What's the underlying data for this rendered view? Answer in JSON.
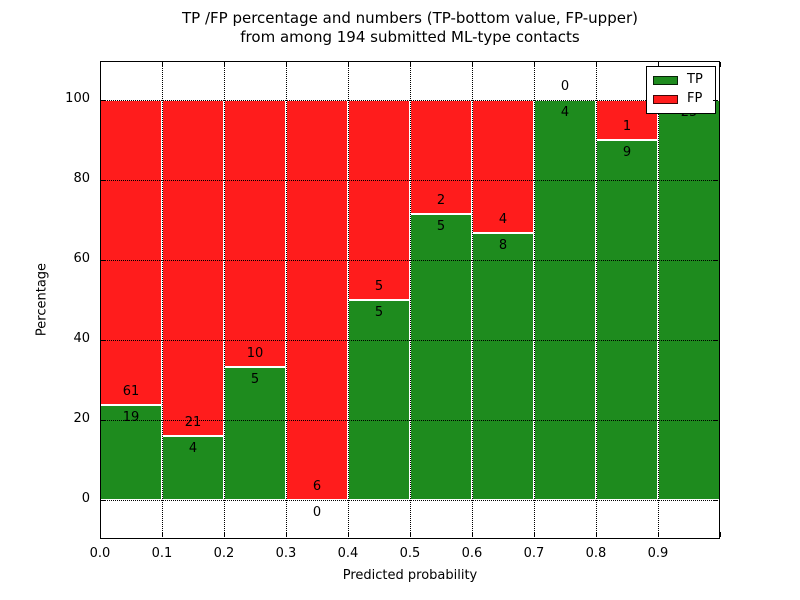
{
  "title": {
    "line1": "TP /FP percentage and numbers (TP-bottom value, FP-upper)",
    "line2": "from among 194 submitted ML-type contacts"
  },
  "axes": {
    "xlabel": "Predicted probability",
    "ylabel": "Percentage",
    "xtick_labels": [
      "0.0",
      "0.1",
      "0.2",
      "0.3",
      "0.4",
      "0.5",
      "0.6",
      "0.7",
      "0.8",
      "0.9"
    ],
    "ytick_labels": [
      "0",
      "20",
      "40",
      "60",
      "80",
      "100"
    ],
    "ytick_values": [
      0,
      20,
      40,
      60,
      80,
      100
    ]
  },
  "legend": {
    "entries": [
      {
        "label": "TP",
        "color": "#1e8b1e"
      },
      {
        "label": "FP",
        "color": "#ff1c1c"
      }
    ]
  },
  "colors": {
    "tp_green": "#1e8b1e",
    "fp_red": "#ff1c1c",
    "grid": "#000000",
    "background": "#ffffff"
  },
  "chart_data": {
    "type": "bar",
    "stacked": true,
    "normalized_to": 100,
    "title": "TP /FP percentage and numbers (TP-bottom value, FP-upper) from among 194 submitted ML-type contacts",
    "xlabel": "Predicted probability",
    "ylabel": "Percentage",
    "bin_edges": [
      0.0,
      0.1,
      0.2,
      0.3,
      0.4,
      0.5,
      0.6,
      0.7,
      0.8,
      0.9,
      1.0
    ],
    "categories": [
      "0.0-0.1",
      "0.1-0.2",
      "0.2-0.3",
      "0.3-0.4",
      "0.4-0.5",
      "0.5-0.6",
      "0.6-0.7",
      "0.7-0.8",
      "0.8-0.9",
      "0.9-1.0"
    ],
    "series": [
      {
        "name": "TP",
        "color": "#1e8b1e",
        "values": [
          19,
          4,
          5,
          0,
          5,
          5,
          8,
          4,
          9,
          25
        ]
      },
      {
        "name": "FP",
        "color": "#ff1c1c",
        "values": [
          61,
          21,
          10,
          6,
          5,
          2,
          4,
          0,
          1,
          0
        ]
      }
    ],
    "tp_percent_per_bin": [
      23.75,
      16.0,
      33.33,
      0.0,
      50.0,
      71.43,
      66.67,
      100.0,
      90.0,
      100.0
    ],
    "total_contacts": 194,
    "xlim": [
      0.0,
      1.0
    ],
    "ylim": [
      -10,
      110
    ],
    "grid": "dotted",
    "legend_position": "upper right"
  }
}
